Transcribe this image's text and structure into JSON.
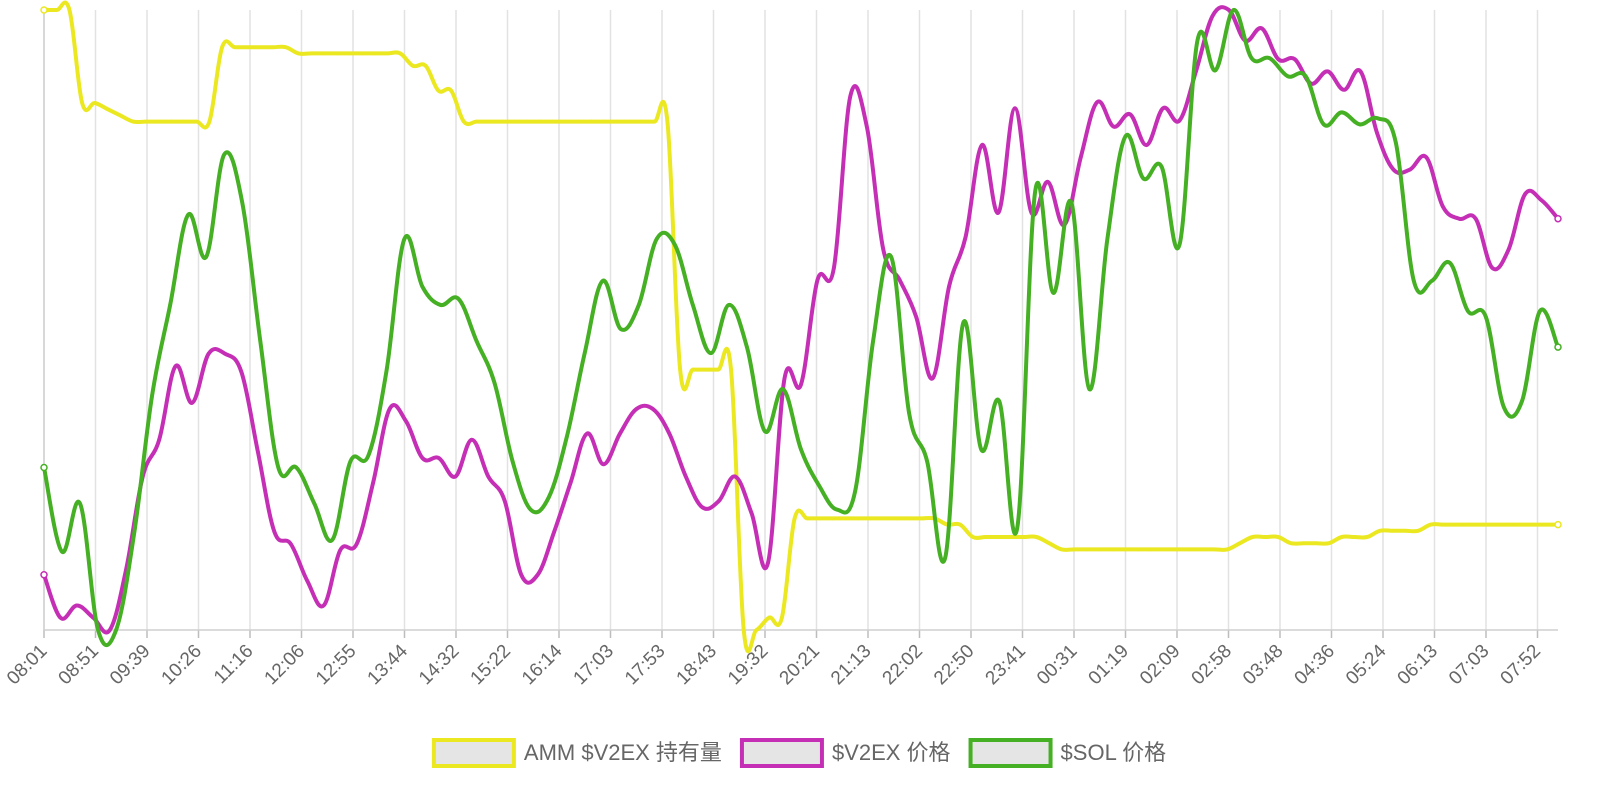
{
  "chart_data": {
    "type": "line",
    "grid": "vertical",
    "legend_placement": "bottom-center",
    "x_labels": [
      "08:01",
      "08:51",
      "09:39",
      "10:26",
      "11:16",
      "12:06",
      "12:55",
      "13:44",
      "14:32",
      "15:22",
      "16:14",
      "17:03",
      "17:53",
      "18:43",
      "19:32",
      "20:21",
      "21:13",
      "22:02",
      "22:50",
      "23:41",
      "00:31",
      "01:19",
      "02:09",
      "02:58",
      "03:48",
      "04:36",
      "05:24",
      "06:13",
      "07:03",
      "07:52"
    ],
    "series": [
      {
        "name": "AMM $V2EX 持有量",
        "color": "#ebe821",
        "values": [
          100,
          100,
          100,
          85,
          85,
          84,
          83,
          82,
          82,
          82,
          82,
          82,
          82,
          82,
          94,
          94,
          94,
          94,
          94,
          94,
          93,
          93,
          93,
          93,
          93,
          93,
          93,
          93,
          93,
          91,
          91,
          87,
          87,
          82,
          82,
          82,
          82,
          82,
          82,
          82,
          82,
          82,
          82,
          82,
          82,
          82,
          82,
          82,
          82,
          82,
          42,
          42,
          42,
          42,
          42,
          0,
          0,
          2,
          2,
          18,
          18,
          18,
          18,
          18,
          18,
          18,
          18,
          18,
          18,
          18,
          18,
          17,
          17,
          15,
          15,
          15,
          15,
          15,
          15,
          14,
          13,
          13,
          13,
          13,
          13,
          13,
          13,
          13,
          13,
          13,
          13,
          13,
          13,
          13,
          14,
          15,
          15,
          15,
          14,
          14,
          14,
          14,
          15,
          15,
          15,
          16,
          16,
          16,
          16,
          17,
          17,
          17,
          17,
          17,
          17,
          17,
          17,
          17,
          17,
          17
        ]
      },
      {
        "name": "$V2EX 价格",
        "color": "#c42fb5",
        "values": [
          9,
          2,
          4,
          2,
          0,
          10,
          25,
          31,
          43,
          37,
          45,
          45,
          42,
          29,
          16,
          14,
          8,
          4,
          13,
          14,
          24,
          36,
          34,
          28,
          28,
          25,
          31,
          25,
          21,
          9,
          9,
          16,
          24,
          32,
          27,
          32,
          36,
          36,
          32,
          25,
          20,
          21,
          25,
          19,
          11,
          41,
          40,
          57,
          59,
          87,
          82,
          62,
          57,
          51,
          41,
          56,
          64,
          79,
          68,
          85,
          68,
          73,
          66,
          77,
          86,
          82,
          84,
          79,
          85,
          83,
          91,
          100,
          101,
          96,
          98,
          93,
          93,
          89,
          91,
          88,
          91,
          81,
          75,
          75,
          77,
          69,
          67,
          67,
          59,
          62,
          71,
          70,
          67
        ]
      },
      {
        "name": "$SOL 价格",
        "color": "#45b023",
        "values": [
          27,
          13,
          21,
          0,
          0,
          16,
          39,
          54,
          69,
          62,
          79,
          71,
          48,
          27,
          27,
          21,
          15,
          28,
          29,
          43,
          65,
          57,
          54,
          55,
          48,
          41,
          28,
          20,
          22,
          32,
          46,
          58,
          50,
          54,
          65,
          64,
          54,
          46,
          54,
          47,
          33,
          40,
          30,
          24,
          20,
          23,
          48,
          62,
          36,
          28,
          12,
          51,
          30,
          38,
          17,
          73,
          56,
          71,
          40,
          65,
          82,
          75,
          77,
          64,
          98,
          93,
          103,
          95,
          95,
          92,
          92,
          84,
          86,
          84,
          85,
          81,
          58,
          58,
          61,
          53,
          52,
          37,
          38,
          53,
          47
        ]
      }
    ]
  }
}
